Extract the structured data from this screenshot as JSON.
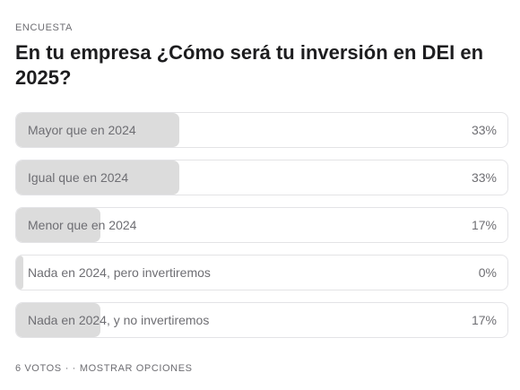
{
  "poll": {
    "kicker": "ENCUESTA",
    "question": "En tu empresa ¿Cómo será tu inversión en DEI en 2025?",
    "options": [
      {
        "label": "Mayor que en 2024",
        "percent_label": "33%",
        "fraction": 0.33
      },
      {
        "label": "Igual que en 2024",
        "percent_label": "33%",
        "fraction": 0.33
      },
      {
        "label": "Menor que en 2024",
        "percent_label": "17%",
        "fraction": 0.17
      },
      {
        "label": "Nada en 2024, pero invertiremos",
        "percent_label": "0%",
        "fraction": 0.0
      },
      {
        "label": "Nada en 2024, y no invertiremos",
        "percent_label": "17%",
        "fraction": 0.17
      }
    ],
    "footer": {
      "votes": "6 VOTOS",
      "separator": "· ·",
      "show_options": "MOSTRAR OPCIONES"
    }
  }
}
